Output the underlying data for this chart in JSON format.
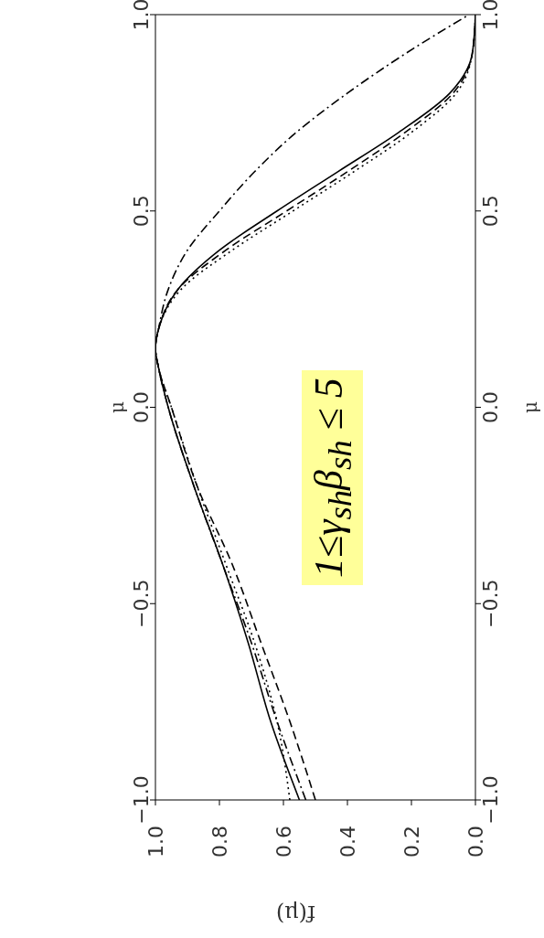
{
  "chart_data": {
    "type": "line",
    "xlabel": "f(μ)",
    "ylabel": "μ",
    "y2label": "μ",
    "series": [
      {
        "color": "#000000",
        "line_style": "solid",
        "x": [
          0.55,
          0.64,
          0.71,
          0.79,
          0.88,
          0.96,
          0.99,
          1.0,
          0.99,
          0.93,
          0.8,
          0.62,
          0.43,
          0.24,
          0.08,
          0.01,
          0.0
        ],
        "values": [
          -1,
          -0.8,
          -0.6,
          -0.4,
          -0.2,
          0,
          0.1,
          0.15,
          0.2,
          0.3,
          0.4,
          0.5,
          0.6,
          0.7,
          0.8,
          0.9,
          1
        ]
      },
      {
        "color": "#000000",
        "line_style": "dashed",
        "x": [
          0.5,
          0.58,
          0.67,
          0.76,
          0.87,
          0.95,
          0.99,
          1.0,
          0.99,
          0.93,
          0.78,
          0.59,
          0.4,
          0.22,
          0.07,
          0.01,
          0.0
        ],
        "values": [
          -1,
          -0.8,
          -0.6,
          -0.4,
          -0.2,
          0,
          0.1,
          0.15,
          0.2,
          0.3,
          0.4,
          0.5,
          0.6,
          0.7,
          0.8,
          0.9,
          1
        ]
      },
      {
        "color": "#000000",
        "line_style": "dotted",
        "x": [
          0.58,
          0.62,
          0.69,
          0.78,
          0.87,
          0.95,
          0.99,
          1.0,
          0.99,
          0.92,
          0.76,
          0.57,
          0.38,
          0.2,
          0.06,
          0.01,
          0.0
        ],
        "values": [
          -1,
          -0.8,
          -0.6,
          -0.4,
          -0.2,
          0,
          0.1,
          0.15,
          0.2,
          0.3,
          0.4,
          0.5,
          0.6,
          0.7,
          0.8,
          0.9,
          1
        ]
      },
      {
        "color": "#000000",
        "line_style": "dashdot",
        "x": [
          0.53,
          0.62,
          0.7,
          0.79,
          0.88,
          0.96,
          0.99,
          1.0,
          0.99,
          0.96,
          0.9,
          0.8,
          0.69,
          0.56,
          0.4,
          0.22,
          0.02
        ],
        "values": [
          -1,
          -0.8,
          -0.6,
          -0.4,
          -0.2,
          0,
          0.1,
          0.15,
          0.2,
          0.3,
          0.4,
          0.5,
          0.6,
          0.7,
          0.8,
          0.9,
          1
        ]
      }
    ],
    "xlim": [
      1,
      0
    ],
    "xticks": [
      {
        "value": 1,
        "label": "1.0"
      },
      {
        "value": 0.8,
        "label": "0.8"
      },
      {
        "value": 0.6,
        "label": "0.6"
      },
      {
        "value": 0.4,
        "label": "0.4"
      },
      {
        "value": 0.2,
        "label": "0.2"
      },
      {
        "value": 0,
        "label": "0.0"
      }
    ],
    "ylim": [
      -1,
      1
    ],
    "yticks": [
      {
        "value": -1,
        "label": "−1.0"
      },
      {
        "value": -0.5,
        "label": "−0.5"
      },
      {
        "value": 0,
        "label": "0.0"
      },
      {
        "value": 0.5,
        "label": "0.5"
      },
      {
        "value": 1,
        "label": "1.0"
      }
    ],
    "y2lim": [
      -1,
      1
    ],
    "y2ticks": [
      {
        "value": -1,
        "label": "−1.0"
      },
      {
        "value": -0.5,
        "label": "−0.5"
      },
      {
        "value": 0,
        "label": "0.0"
      },
      {
        "value": 0.5,
        "label": "0.5"
      },
      {
        "value": 1,
        "label": "1.0"
      }
    ],
    "grid": false,
    "legend": false,
    "marker": "none",
    "annotations": [
      "1≤γ$_{sh}$β$_{sh}$ ≤ 5"
    ]
  }
}
